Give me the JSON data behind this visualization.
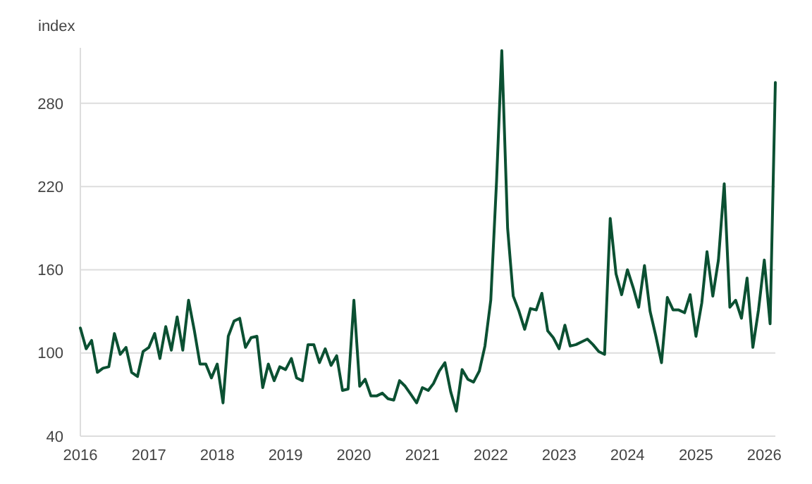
{
  "chart_data": {
    "type": "line",
    "ylabel": "index",
    "grid": "y",
    "marker": "none",
    "line_style": "solid",
    "xlim": [
      "2016-01",
      "2026-03"
    ],
    "xticks": [
      "2016",
      "2017",
      "2018",
      "2019",
      "2020",
      "2021",
      "2022",
      "2023",
      "2024",
      "2025",
      "2026"
    ],
    "ylim": [
      40,
      320
    ],
    "yticks": [
      40,
      100,
      160,
      220,
      280
    ],
    "x": [
      "2016-01",
      "2016-02",
      "2016-03",
      "2016-04",
      "2016-05",
      "2016-06",
      "2016-07",
      "2016-08",
      "2016-09",
      "2016-10",
      "2016-11",
      "2016-12",
      "2017-01",
      "2017-02",
      "2017-03",
      "2017-04",
      "2017-05",
      "2017-06",
      "2017-07",
      "2017-08",
      "2017-09",
      "2017-10",
      "2017-11",
      "2017-12",
      "2018-01",
      "2018-02",
      "2018-03",
      "2018-04",
      "2018-05",
      "2018-06",
      "2018-07",
      "2018-08",
      "2018-09",
      "2018-10",
      "2018-11",
      "2018-12",
      "2019-01",
      "2019-02",
      "2019-03",
      "2019-04",
      "2019-05",
      "2019-06",
      "2019-07",
      "2019-08",
      "2019-09",
      "2019-10",
      "2019-11",
      "2019-12",
      "2020-01",
      "2020-02",
      "2020-03",
      "2020-04",
      "2020-05",
      "2020-06",
      "2020-07",
      "2020-08",
      "2020-09",
      "2020-10",
      "2020-11",
      "2020-12",
      "2021-01",
      "2021-02",
      "2021-03",
      "2021-04",
      "2021-05",
      "2021-06",
      "2021-07",
      "2021-08",
      "2021-09",
      "2021-10",
      "2021-11",
      "2021-12",
      "2022-01",
      "2022-02",
      "2022-03",
      "2022-04",
      "2022-05",
      "2022-06",
      "2022-07",
      "2022-08",
      "2022-09",
      "2022-10",
      "2022-11",
      "2022-12",
      "2023-01",
      "2023-02",
      "2023-03",
      "2023-04",
      "2023-05",
      "2023-06",
      "2023-07",
      "2023-08",
      "2023-09",
      "2023-10",
      "2023-11",
      "2023-12",
      "2024-01",
      "2024-02",
      "2024-03",
      "2024-04",
      "2024-05",
      "2024-06",
      "2024-07",
      "2024-08",
      "2024-09",
      "2024-10",
      "2024-11",
      "2024-12",
      "2025-01",
      "2025-02",
      "2025-03",
      "2025-04",
      "2025-05",
      "2025-06",
      "2025-07",
      "2025-08",
      "2025-09",
      "2025-10",
      "2025-11",
      "2025-12",
      "2026-01",
      "2026-02",
      "2026-03"
    ],
    "series": [
      {
        "color": "#0b5032",
        "values": [
          118,
          103,
          109,
          86,
          89,
          90,
          114,
          99,
          104,
          86,
          83,
          101,
          104,
          114,
          96,
          119,
          102,
          126,
          102,
          138,
          116,
          92,
          92,
          82,
          92,
          64,
          112,
          123,
          125,
          104,
          111,
          112,
          75,
          92,
          80,
          90,
          88,
          96,
          82,
          80,
          106,
          106,
          93,
          103,
          91,
          98,
          73,
          74,
          138,
          76,
          81,
          69,
          69,
          71,
          67,
          66,
          80,
          76,
          70,
          64,
          75,
          73,
          78,
          87,
          93,
          72,
          58,
          88,
          81,
          79,
          87,
          105,
          138,
          224,
          318,
          190,
          141,
          130,
          117,
          132,
          131,
          143,
          116,
          111,
          103,
          120,
          105,
          106,
          108,
          110,
          106,
          101,
          99,
          197,
          157,
          142,
          160,
          147,
          133,
          163,
          130,
          112,
          93,
          140,
          131,
          131,
          129,
          142,
          112,
          136,
          173,
          141,
          167,
          222,
          133,
          138,
          125,
          154,
          104,
          131,
          167,
          121,
          295
        ]
      }
    ]
  }
}
